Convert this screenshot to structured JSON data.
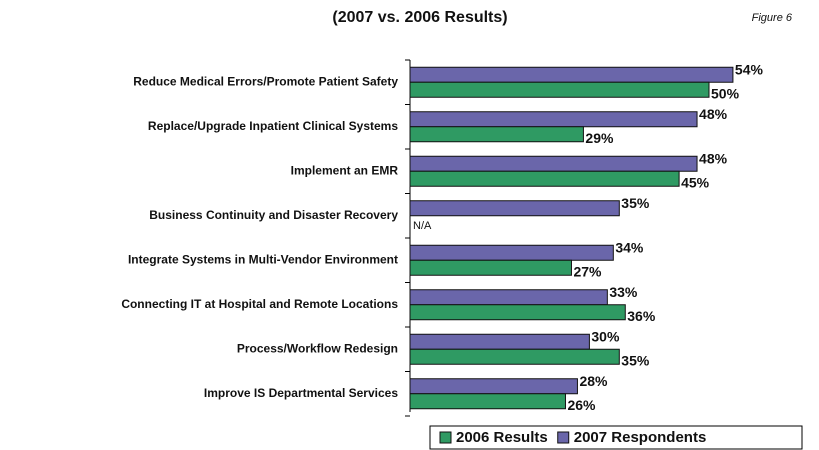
{
  "chart_data": {
    "type": "bar",
    "orientation": "horizontal",
    "title": "(2007 vs. 2006 Results)",
    "annotation": "Figure 6",
    "categories": [
      "Reduce Medical Errors/Promote Patient Safety",
      "Replace/Upgrade Inpatient Clinical Systems",
      "Implement an EMR",
      "Business Continuity and Disaster Recovery",
      "Integrate Systems in Multi-Vendor Environment",
      "Connecting IT at Hospital and Remote Locations",
      "Process/Workflow Redesign",
      "Improve IS Departmental Services"
    ],
    "series": [
      {
        "name": "2006 Results",
        "color": "#2f9a63",
        "values": [
          50,
          29,
          45,
          null,
          27,
          36,
          35,
          26
        ],
        "value_labels": [
          "50%",
          "29%",
          "45%",
          "N/A",
          "27%",
          "36%",
          "35%",
          "26%"
        ]
      },
      {
        "name": "2007 Respondents",
        "color": "#6a66aa",
        "values": [
          54,
          48,
          48,
          35,
          34,
          33,
          30,
          28
        ],
        "value_labels": [
          "54%",
          "48%",
          "48%",
          "35%",
          "34%",
          "33%",
          "30%",
          "28%"
        ]
      }
    ]
  }
}
